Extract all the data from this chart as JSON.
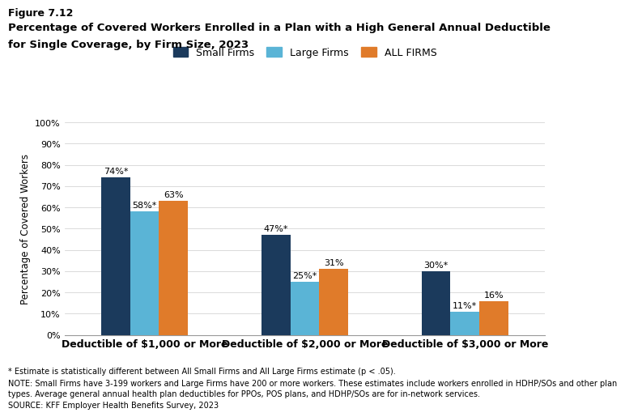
{
  "figure_label": "Figure 7.12",
  "title_line1": "Percentage of Covered Workers Enrolled in a Plan with a High General Annual Deductible",
  "title_line2": "for Single Coverage, by Firm Size, 2023",
  "ylabel": "Percentage of Covered Workers",
  "categories": [
    "Deductible of $1,000 or More",
    "Deductible of $2,000 or More",
    "Deductible of $3,000 or More"
  ],
  "series": {
    "Small Firms": [
      74,
      47,
      30
    ],
    "Large Firms": [
      58,
      25,
      11
    ],
    "ALL FIRMS": [
      63,
      31,
      16
    ]
  },
  "labels": {
    "Small Firms": [
      "74%*",
      "47%*",
      "30%*"
    ],
    "Large Firms": [
      "58%*",
      "25%*",
      "11%*"
    ],
    "ALL FIRMS": [
      "63%",
      "31%",
      "16%"
    ]
  },
  "colors": {
    "Small Firms": "#1b3a5c",
    "Large Firms": "#5ab4d6",
    "ALL FIRMS": "#e07b2a"
  },
  "ylim": [
    0,
    100
  ],
  "yticks": [
    0,
    10,
    20,
    30,
    40,
    50,
    60,
    70,
    80,
    90,
    100
  ],
  "ytick_labels": [
    "0%",
    "10%",
    "20%",
    "30%",
    "40%",
    "50%",
    "60%",
    "70%",
    "80%",
    "90%",
    "100%"
  ],
  "bar_width": 0.18,
  "legend_order": [
    "Small Firms",
    "Large Firms",
    "ALL FIRMS"
  ],
  "footnote1": "* Estimate is statistically different between All Small Firms and All Large Firms estimate (p < .05).",
  "footnote2": "NOTE: Small Firms have 3-199 workers and Large Firms have 200 or more workers. These estimates include workers enrolled in HDHP/SOs and other plan",
  "footnote2b": "types. Average general annual health plan deductibles for PPOs, POS plans, and HDHP/SOs are for in-network services.",
  "footnote3": "SOURCE: KFF Employer Health Benefits Survey, 2023",
  "background_color": "#ffffff"
}
